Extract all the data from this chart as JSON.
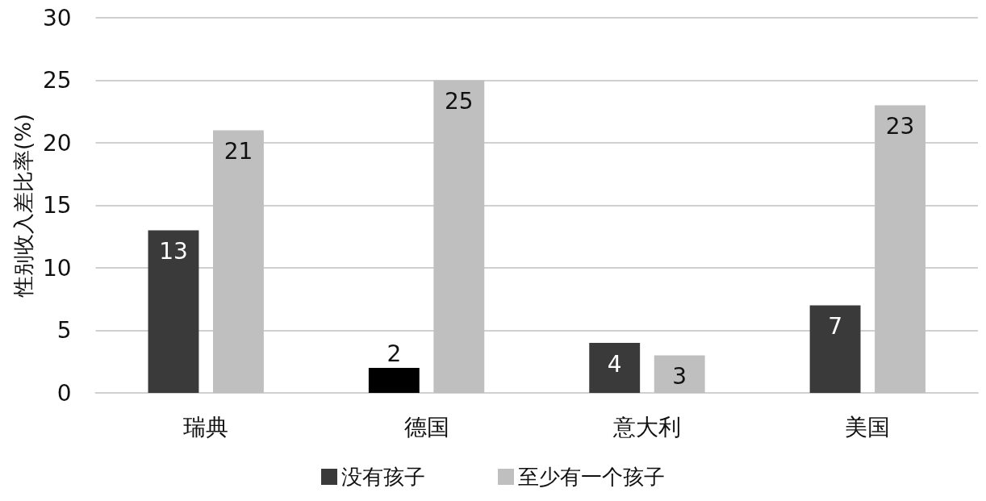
{
  "chart_data": {
    "type": "bar",
    "ylabel": "性别收入差比率(%)",
    "categories": [
      "瑞典",
      "德国",
      "意大利",
      "美国"
    ],
    "series": [
      {
        "name": "没有孩子",
        "color": "#3a3a3a",
        "colors": [
          "#3a3a3a",
          "#000000",
          "#3a3a3a",
          "#3a3a3a"
        ],
        "values": [
          13,
          2,
          4,
          7
        ]
      },
      {
        "name": "至少有一个孩子",
        "color": "#bfbfbf",
        "values": [
          21,
          25,
          3,
          23
        ]
      }
    ],
    "ylim": [
      0,
      30
    ],
    "yticks": [
      0,
      5,
      10,
      15,
      20,
      25,
      30
    ],
    "grid": "y",
    "legend": "bottom",
    "data_labels": true
  }
}
